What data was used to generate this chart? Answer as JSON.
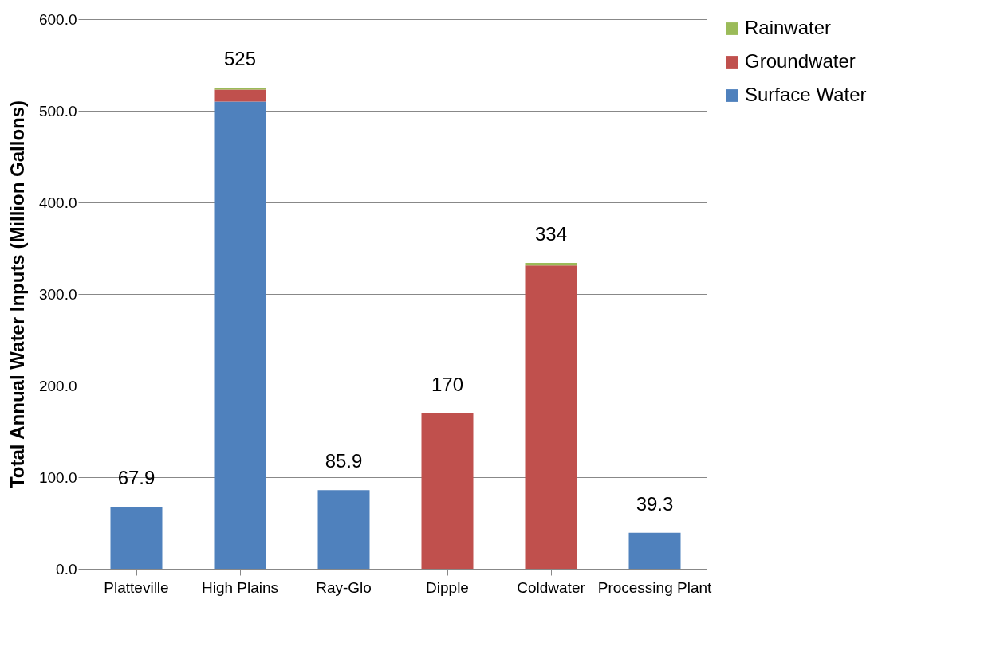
{
  "chart_data": {
    "type": "bar",
    "stacked": true,
    "ylabel": "Total Annual Water Inputs (Million Gallons)",
    "categories": [
      "Platteville",
      "High Plains",
      "Ray-Glo",
      "Dipple",
      "Coldwater",
      "Processing Plant"
    ],
    "series": [
      {
        "name": "Surface Water",
        "color": "#4f81bd",
        "values": [
          67.9,
          510,
          85.9,
          0,
          0,
          39.3
        ]
      },
      {
        "name": "Groundwater",
        "color": "#c0504d",
        "values": [
          0,
          13,
          0,
          170,
          331,
          0
        ]
      },
      {
        "name": "Rainwater",
        "color": "#9bbb59",
        "values": [
          0,
          2,
          0,
          0,
          3,
          0
        ]
      }
    ],
    "totals": [
      "67.9",
      "525",
      "85.9",
      "170",
      "334",
      "39.3"
    ],
    "ylim": [
      0,
      600
    ],
    "yticks": [
      {
        "value": 0,
        "label": "0.0"
      },
      {
        "value": 100,
        "label": "100.0"
      },
      {
        "value": 200,
        "label": "200.0"
      },
      {
        "value": 300,
        "label": "300.0"
      },
      {
        "value": 400,
        "label": "400.0"
      },
      {
        "value": 500,
        "label": "500.0"
      },
      {
        "value": 600,
        "label": "600.0"
      }
    ],
    "grid": "y",
    "legend": "right"
  }
}
